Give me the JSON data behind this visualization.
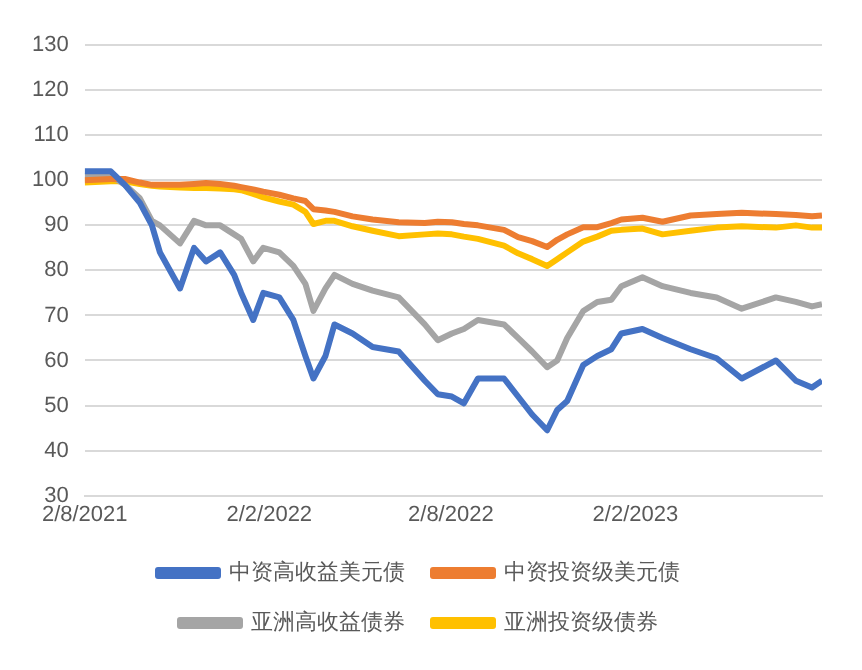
{
  "chart_data": {
    "type": "line",
    "x": [
      "2021-08-02",
      "2021-08-28",
      "2021-09-11",
      "2021-09-26",
      "2021-10-08",
      "2021-10-16",
      "2021-11-05",
      "2021-11-19",
      "2021-12-01",
      "2021-12-15",
      "2021-12-29",
      "2022-01-05",
      "2022-01-17",
      "2022-01-27",
      "2022-02-12",
      "2022-02-26",
      "2022-03-10",
      "2022-03-18",
      "2022-03-30",
      "2022-04-08",
      "2022-04-26",
      "2022-05-16",
      "2022-06-11",
      "2022-07-07",
      "2022-07-20",
      "2022-08-03",
      "2022-08-15",
      "2022-08-29",
      "2022-09-24",
      "2022-10-08",
      "2022-10-22",
      "2022-11-06",
      "2022-11-16",
      "2022-11-26",
      "2022-12-12",
      "2022-12-26",
      "2023-01-09",
      "2023-01-19",
      "2023-02-09",
      "2023-03-01",
      "2023-03-29",
      "2023-04-24",
      "2023-05-19",
      "2023-06-22",
      "2023-07-12",
      "2023-07-28",
      "2023-08-07"
    ],
    "series": [
      {
        "name": "中资高收益美元债",
        "color": "#4472c4",
        "values": [
          102,
          102,
          99,
          95,
          90,
          84,
          76,
          85,
          82,
          84,
          79,
          75,
          69,
          75,
          74,
          69,
          61,
          56,
          61,
          68,
          66,
          63,
          62,
          55.5,
          52.5,
          52,
          50.5,
          56,
          56,
          52,
          48,
          44.5,
          49,
          51,
          59,
          61,
          62.5,
          66,
          67,
          65,
          62.5,
          60.5,
          56,
          60,
          55.5,
          54,
          55.5
        ]
      },
      {
        "name": "中资投资级美元债",
        "color": "#ed7d31",
        "values": [
          100,
          100.3,
          100.3,
          99.5,
          99,
          99,
          99,
          99.2,
          99.4,
          99.2,
          98.8,
          98.5,
          98,
          97.5,
          96.8,
          96,
          95.4,
          93.6,
          93.3,
          93,
          92,
          91.3,
          90.7,
          90.5,
          90.8,
          90.7,
          90.3,
          90,
          89,
          87.4,
          86.5,
          85.2,
          86.8,
          88,
          89.6,
          89.6,
          90.5,
          91.3,
          91.7,
          90.8,
          92.2,
          92.5,
          92.8,
          92.5,
          92.3,
          92,
          92.2
        ]
      },
      {
        "name": "亚洲高收益债券",
        "color": "#a5a5a5",
        "values": [
          101,
          101,
          99,
          96,
          91,
          90,
          86,
          91,
          90,
          90,
          88,
          87,
          82,
          85,
          84,
          81,
          77,
          71,
          76,
          79,
          77,
          75.5,
          74,
          68,
          64.5,
          66,
          67,
          69,
          68,
          65,
          62,
          58.5,
          60,
          65,
          71,
          73,
          73.5,
          76.5,
          78.5,
          76.5,
          75,
          74,
          71.5,
          74,
          73,
          72,
          72.5
        ]
      },
      {
        "name": "亚洲投资级债券",
        "color": "#ffc000",
        "values": [
          99.5,
          99.8,
          99.8,
          99.2,
          98.8,
          98.6,
          98.4,
          98.3,
          98.3,
          98.2,
          98,
          97.8,
          97,
          96.2,
          95.3,
          94.6,
          93,
          90.3,
          91,
          91,
          89.8,
          88.8,
          87.6,
          88,
          88.2,
          88,
          87.5,
          87,
          85.5,
          83.8,
          82.5,
          81,
          82.5,
          84,
          86.4,
          87.5,
          88.8,
          89,
          89.3,
          88,
          88.8,
          89.5,
          89.8,
          89.5,
          90,
          89.5,
          89.5
        ]
      }
    ],
    "xlim": [
      "2021-08-02",
      "2023-08-07"
    ],
    "xticks": [
      {
        "value": "2021-08-02",
        "label": "2/8/2021"
      },
      {
        "value": "2022-02-02",
        "label": "2/2/2022"
      },
      {
        "value": "2022-08-02",
        "label": "2/8/2022"
      },
      {
        "value": "2023-02-02",
        "label": "2/2/2023"
      }
    ],
    "ylim": [
      30,
      130
    ],
    "yticks": [
      30,
      40,
      50,
      60,
      70,
      80,
      90,
      100,
      110,
      120,
      130
    ],
    "grid": "y",
    "legend": "bottom",
    "marker": "none",
    "line_style": "solid"
  }
}
